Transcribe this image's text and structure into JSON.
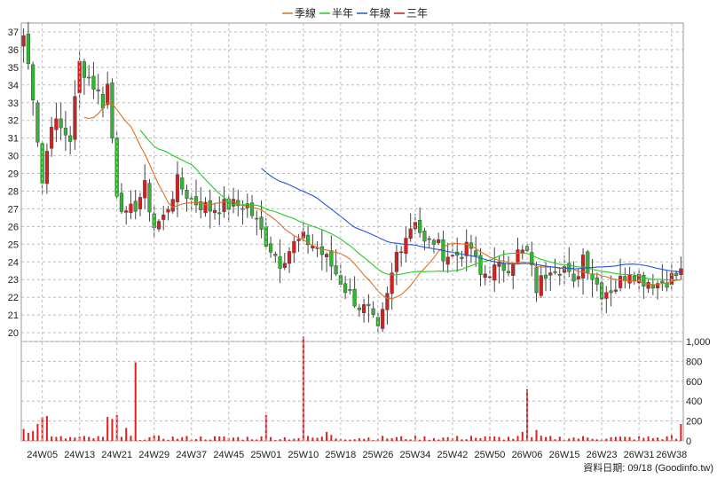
{
  "legend": [
    {
      "label": "季線",
      "color": "#e07020"
    },
    {
      "label": "半年",
      "color": "#22cc22"
    },
    {
      "label": "年線",
      "color": "#2255dd"
    },
    {
      "label": "三年",
      "color": "#dd1111"
    }
  ],
  "source_note": "資料日期: 09/18  (Goodinfo.tw)",
  "colors": {
    "up": "#d61f1f",
    "down": "#2eb82e",
    "wick": "#444444",
    "volume": "#e02020"
  },
  "chart_data": [
    {
      "type": "candlestick",
      "title": "",
      "ylim": [
        19.5,
        37.5
      ],
      "y_ticks": [
        20,
        21,
        22,
        23,
        24,
        25,
        26,
        27,
        28,
        29,
        30,
        31,
        32,
        33,
        34,
        35,
        36,
        37
      ],
      "x_ticks": [
        "24W05",
        "24W13",
        "24W21",
        "24W29",
        "24W37",
        "24W45",
        "25W01",
        "25W10",
        "25W18",
        "25W26",
        "25W34",
        "25W42",
        "25W50",
        "26W06",
        "26W15",
        "26W23",
        "26W31",
        "26W38"
      ],
      "x_tick_index": [
        4,
        12,
        20,
        28,
        36,
        44,
        52,
        60,
        68,
        76,
        84,
        92,
        100,
        108,
        116,
        124,
        132,
        139
      ],
      "n_weeks": 142,
      "close_anchors": [
        [
          0,
          36.8
        ],
        [
          2,
          33.5
        ],
        [
          4,
          28.5
        ],
        [
          6,
          32
        ],
        [
          10,
          31
        ],
        [
          12,
          35.2
        ],
        [
          15,
          34
        ],
        [
          17,
          33
        ],
        [
          18,
          34
        ],
        [
          20,
          28
        ],
        [
          22,
          26.5
        ],
        [
          24,
          27.2
        ],
        [
          26,
          28.2
        ],
        [
          28,
          26
        ],
        [
          30,
          26.5
        ],
        [
          33,
          28.5
        ],
        [
          36,
          27.5
        ],
        [
          40,
          27
        ],
        [
          44,
          27.2
        ],
        [
          48,
          27.2
        ],
        [
          52,
          25.2
        ],
        [
          55,
          24
        ],
        [
          58,
          25
        ],
        [
          60,
          25.3
        ],
        [
          63,
          24.8
        ],
        [
          66,
          23.8
        ],
        [
          69,
          22.5
        ],
        [
          72,
          21.5
        ],
        [
          74,
          21.2
        ],
        [
          76,
          20
        ],
        [
          78,
          22
        ],
        [
          80,
          24.5
        ],
        [
          82,
          25.5
        ],
        [
          84,
          26.5
        ],
        [
          86,
          25
        ],
        [
          88,
          25.2
        ],
        [
          90,
          24.5
        ],
        [
          92,
          24.3
        ],
        [
          96,
          24.8
        ],
        [
          98,
          23.2
        ],
        [
          100,
          23.5
        ],
        [
          104,
          23.8
        ],
        [
          106,
          24.5
        ],
        [
          108,
          24.5
        ],
        [
          110,
          22.5
        ],
        [
          113,
          23.8
        ],
        [
          116,
          23.7
        ],
        [
          118,
          22.6
        ],
        [
          120,
          24.4
        ],
        [
          122,
          23.2
        ],
        [
          124,
          22.3
        ],
        [
          127,
          22.6
        ],
        [
          130,
          23.6
        ],
        [
          133,
          23
        ],
        [
          136,
          22.8
        ],
        [
          138,
          23
        ],
        [
          141,
          23.4
        ]
      ],
      "candles_ohlc_note": "weekly OHLC approximated around close path",
      "ma_quarter_start": 13,
      "ma_half_start": 25,
      "ma_year_start": 51,
      "volume": {
        "ylim": [
          0,
          1000
        ],
        "y_ticks": [
          0,
          200,
          400,
          600,
          800,
          1000
        ],
        "y_tick_labels": [
          "0",
          "200",
          "400",
          "600",
          "800",
          "1,000"
        ],
        "spikes": [
          [
            0,
            120
          ],
          [
            1,
            80
          ],
          [
            2,
            100
          ],
          [
            3,
            170
          ],
          [
            4,
            240
          ],
          [
            5,
            250
          ],
          [
            18,
            240
          ],
          [
            19,
            220
          ],
          [
            20,
            260
          ],
          [
            22,
            130
          ],
          [
            24,
            790
          ],
          [
            52,
            260
          ],
          [
            60,
            1060
          ],
          [
            65,
            90
          ],
          [
            66,
            60
          ],
          [
            96,
            50
          ],
          [
            107,
            90
          ],
          [
            108,
            520
          ],
          [
            110,
            110
          ],
          [
            139,
            60
          ],
          [
            141,
            170
          ]
        ]
      }
    }
  ]
}
